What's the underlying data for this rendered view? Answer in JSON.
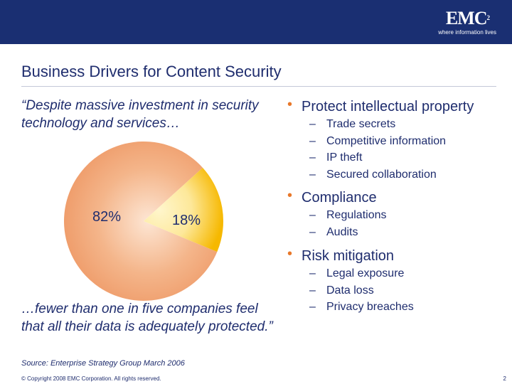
{
  "brand": {
    "logo_text": "EMC",
    "logo_sup": "2",
    "tagline": "where information lives",
    "header_color": "#1a2f72",
    "accent_color": "#e8782a"
  },
  "slide": {
    "title": "Business Drivers for Content Security",
    "quote_top": "“Despite massive investment in security technology and services…",
    "quote_bottom": "…fewer than one in five companies feel that all their data is adequately protected.”",
    "source": "Source: Enterprise Strategy Group March 2006",
    "copyright": "© Copyright 2008 EMC Corporation. All rights reserved.",
    "page_number": "2"
  },
  "chart_data": {
    "type": "pie",
    "title": "",
    "slices": [
      {
        "label": "82%",
        "value": 82,
        "color": "#f0a070"
      },
      {
        "label": "18%",
        "value": 18,
        "color": "#f8c848"
      }
    ]
  },
  "bullets": [
    {
      "heading": "Protect intellectual property",
      "items": [
        "Trade secrets",
        "Competitive information",
        "IP theft",
        "Secured collaboration"
      ]
    },
    {
      "heading": "Compliance",
      "items": [
        "Regulations",
        "Audits"
      ]
    },
    {
      "heading": "Risk mitigation",
      "items": [
        "Legal exposure",
        "Data loss",
        "Privacy breaches"
      ]
    }
  ]
}
